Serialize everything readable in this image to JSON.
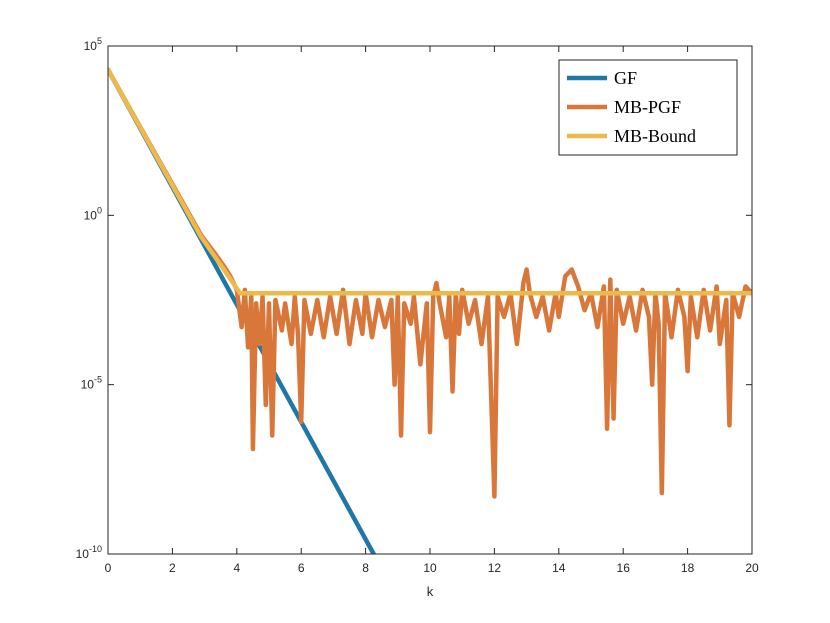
{
  "chart_data": {
    "type": "line",
    "xlabel": "k",
    "ylabel": "",
    "yscale": "log",
    "xlim": [
      0,
      20
    ],
    "ylim_exp": [
      -10,
      5
    ],
    "x_ticks": [
      0,
      2,
      4,
      6,
      8,
      10,
      12,
      14,
      16,
      18,
      20
    ],
    "x_tick_labels": [
      "0",
      "2",
      "4",
      "6",
      "8",
      "10",
      "12",
      "14",
      "16",
      "18",
      "20"
    ],
    "y_ticks_exp": [
      -10,
      -5,
      0,
      5
    ],
    "y_tick_base": "10",
    "y_tick_exponents": [
      "-10",
      "-5",
      "0",
      "5"
    ],
    "legend_position": "top-right",
    "series": [
      {
        "name": "GF",
        "color": "#1f77a8",
        "log10_y": [
          [
            0,
            4.3
          ],
          [
            8.25,
            -10.0
          ]
        ]
      },
      {
        "name": "MB-PGF",
        "color": "#d9773a",
        "log10_y": [
          [
            0,
            4.3
          ],
          [
            2.9,
            -0.6
          ],
          [
            3.3,
            -1.1
          ],
          [
            3.6,
            -1.5
          ],
          [
            3.8,
            -1.8
          ],
          [
            4.0,
            -2.2
          ],
          [
            4.15,
            -3.3
          ],
          [
            4.25,
            -2.2
          ],
          [
            4.35,
            -3.9
          ],
          [
            4.45,
            -2.4
          ],
          [
            4.5,
            -6.9
          ],
          [
            4.6,
            -2.6
          ],
          [
            4.7,
            -3.8
          ],
          [
            4.8,
            -2.4
          ],
          [
            4.9,
            -5.6
          ],
          [
            5.0,
            -2.6
          ],
          [
            5.1,
            -6.5
          ],
          [
            5.2,
            -2.5
          ],
          [
            5.4,
            -3.4
          ],
          [
            5.5,
            -2.6
          ],
          [
            5.7,
            -3.8
          ],
          [
            5.8,
            -2.4
          ],
          [
            5.9,
            -3.5
          ],
          [
            6.0,
            -6.1
          ],
          [
            6.1,
            -2.5
          ],
          [
            6.3,
            -3.5
          ],
          [
            6.5,
            -2.5
          ],
          [
            6.7,
            -3.6
          ],
          [
            6.9,
            -2.4
          ],
          [
            7.1,
            -3.5
          ],
          [
            7.3,
            -2.2
          ],
          [
            7.5,
            -3.8
          ],
          [
            7.7,
            -2.5
          ],
          [
            7.9,
            -3.5
          ],
          [
            8.0,
            -2.3
          ],
          [
            8.2,
            -3.6
          ],
          [
            8.4,
            -2.5
          ],
          [
            8.6,
            -3.3
          ],
          [
            8.8,
            -2.5
          ],
          [
            8.9,
            -5.0
          ],
          [
            9.0,
            -2.4
          ],
          [
            9.1,
            -6.5
          ],
          [
            9.2,
            -2.6
          ],
          [
            9.4,
            -3.2
          ],
          [
            9.5,
            -2.4
          ],
          [
            9.7,
            -4.4
          ],
          [
            9.9,
            -2.6
          ],
          [
            10.0,
            -6.4
          ],
          [
            10.1,
            -2.4
          ],
          [
            10.2,
            -2.0
          ],
          [
            10.3,
            -2.6
          ],
          [
            10.5,
            -3.6
          ],
          [
            10.6,
            -2.4
          ],
          [
            10.7,
            -5.2
          ],
          [
            10.8,
            -2.3
          ],
          [
            10.9,
            -3.5
          ],
          [
            11.0,
            -2.2
          ],
          [
            11.2,
            -3.2
          ],
          [
            11.4,
            -2.5
          ],
          [
            11.6,
            -3.8
          ],
          [
            11.8,
            -2.4
          ],
          [
            12.0,
            -8.3
          ],
          [
            12.1,
            -2.4
          ],
          [
            12.3,
            -3.0
          ],
          [
            12.5,
            -2.3
          ],
          [
            12.7,
            -3.8
          ],
          [
            12.9,
            -2.0
          ],
          [
            13.0,
            -1.6
          ],
          [
            13.1,
            -2.3
          ],
          [
            13.3,
            -3.0
          ],
          [
            13.5,
            -2.4
          ],
          [
            13.7,
            -3.4
          ],
          [
            13.9,
            -2.3
          ],
          [
            14.0,
            -3.0
          ],
          [
            14.2,
            -1.8
          ],
          [
            14.4,
            -1.6
          ],
          [
            14.6,
            -2.1
          ],
          [
            14.8,
            -2.8
          ],
          [
            15.0,
            -2.3
          ],
          [
            15.2,
            -3.3
          ],
          [
            15.4,
            -2.1
          ],
          [
            15.5,
            -6.3
          ],
          [
            15.6,
            -1.9
          ],
          [
            15.7,
            -6.0
          ],
          [
            15.8,
            -2.2
          ],
          [
            16.0,
            -3.2
          ],
          [
            16.2,
            -2.4
          ],
          [
            16.4,
            -3.4
          ],
          [
            16.6,
            -2.2
          ],
          [
            16.8,
            -3.0
          ],
          [
            16.9,
            -5.0
          ],
          [
            17.0,
            -2.3
          ],
          [
            17.1,
            -3.2
          ],
          [
            17.2,
            -8.2
          ],
          [
            17.3,
            -2.3
          ],
          [
            17.5,
            -3.6
          ],
          [
            17.7,
            -2.2
          ],
          [
            17.9,
            -3.0
          ],
          [
            18.0,
            -4.6
          ],
          [
            18.1,
            -2.4
          ],
          [
            18.3,
            -3.6
          ],
          [
            18.5,
            -2.2
          ],
          [
            18.7,
            -3.4
          ],
          [
            18.9,
            -2.1
          ],
          [
            19.0,
            -3.8
          ],
          [
            19.2,
            -2.5
          ],
          [
            19.3,
            -6.2
          ],
          [
            19.4,
            -2.3
          ],
          [
            19.6,
            -3.0
          ],
          [
            19.8,
            -2.1
          ],
          [
            20.0,
            -2.3
          ]
        ]
      },
      {
        "name": "MB-Bound",
        "color": "#edb94a",
        "log10_y": [
          [
            0,
            4.3
          ],
          [
            2.9,
            -0.65
          ],
          [
            3.6,
            -1.6
          ],
          [
            4.1,
            -2.3
          ],
          [
            20.0,
            -2.3
          ]
        ]
      }
    ]
  }
}
